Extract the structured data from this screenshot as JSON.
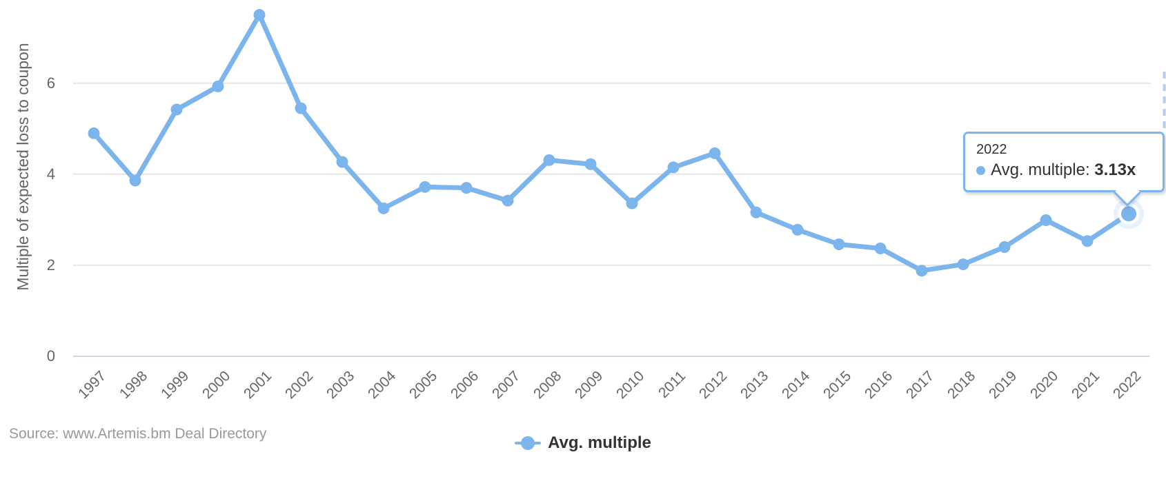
{
  "chart": {
    "y_axis_title": "Multiple of expected loss to coupon",
    "legend_label": "Avg. multiple",
    "source_text": "Source: www.Artemis.bm Deal Directory",
    "tooltip": {
      "year": "2022",
      "series_label": "Avg. multiple:",
      "value": "3.13x"
    },
    "colors": {
      "series": "#7cb5ec",
      "grid": "#e6e6e6",
      "axis_line": "#ccd6eb",
      "crosshair": "#b4cdeb",
      "halo": "#7cb5ec",
      "tick_text": "#666666",
      "tooltip_border": "#7cb5ec"
    }
  },
  "chart_data": {
    "type": "line",
    "title": "",
    "xlabel": "",
    "ylabel": "Multiple of expected loss to coupon",
    "categories": [
      "1997",
      "1998",
      "1999",
      "2000",
      "2001",
      "2002",
      "2003",
      "2004",
      "2005",
      "2006",
      "2007",
      "2008",
      "2009",
      "2010",
      "2011",
      "2012",
      "2013",
      "2014",
      "2015",
      "2016",
      "2017",
      "2018",
      "2019",
      "2020",
      "2021",
      "2022"
    ],
    "series": [
      {
        "name": "Avg. multiple",
        "values": [
          4.9,
          3.86,
          5.42,
          5.93,
          7.5,
          5.45,
          4.27,
          3.25,
          3.72,
          3.7,
          3.42,
          4.31,
          4.22,
          3.36,
          4.15,
          4.46,
          3.16,
          2.78,
          2.46,
          2.37,
          1.88,
          2.02,
          2.4,
          2.99,
          2.53,
          3.13
        ]
      }
    ],
    "y_ticks": [
      0,
      2,
      4,
      6
    ],
    "ylim": [
      0,
      7.83
    ],
    "grid": true,
    "legend_position": "bottom",
    "highlighted_point": {
      "category": "2022",
      "value": 3.13,
      "display": "3.13x"
    }
  }
}
